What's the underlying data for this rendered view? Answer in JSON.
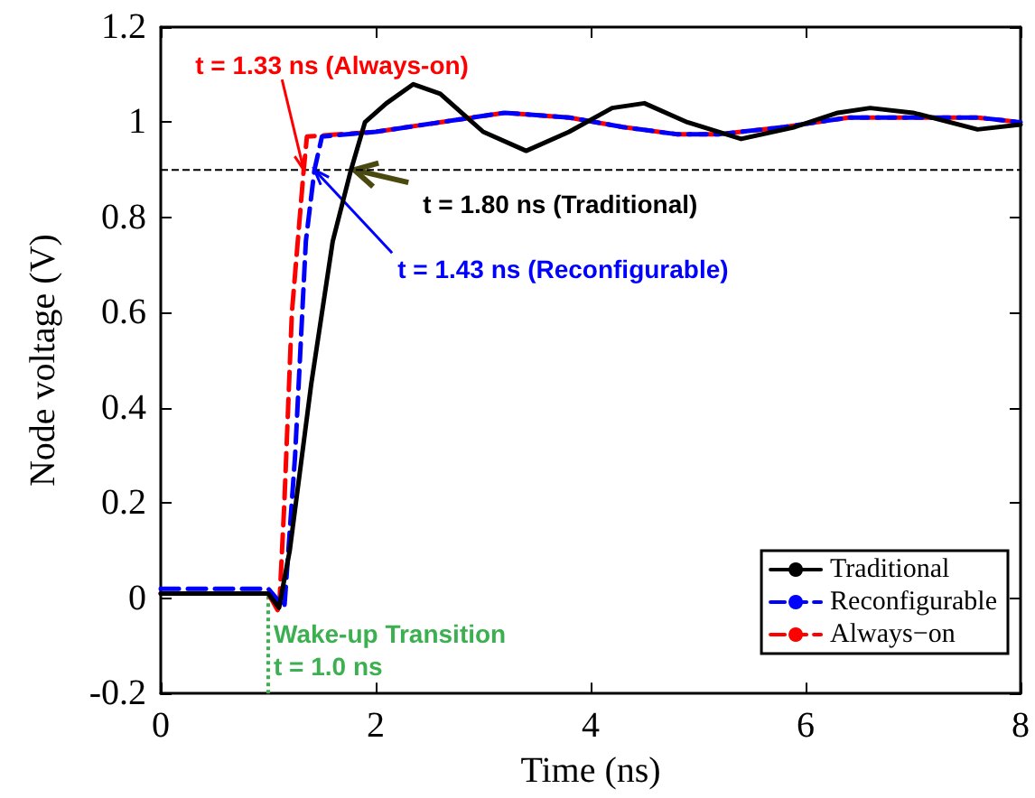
{
  "chart_data": {
    "type": "line",
    "xlabel": "Time (ns)",
    "ylabel": "Node voltage (V)",
    "xlim": [
      0,
      8
    ],
    "xticks": [
      0,
      2,
      4,
      6,
      8
    ],
    "ylim": [
      -0.2,
      1.2
    ],
    "yticks": [
      -0.2,
      0,
      0.2,
      0.4,
      0.6,
      0.8,
      1,
      1.2
    ],
    "grid": false,
    "legend": "bottom right",
    "marker": "none",
    "series": [
      {
        "name": "Traditional",
        "color": "#000000",
        "line_style": "solid",
        "x": [
          0,
          1.0,
          1.1,
          1.2,
          1.4,
          1.6,
          1.77,
          1.9,
          2.1,
          2.35,
          2.6,
          3.0,
          3.4,
          3.8,
          4.2,
          4.5,
          4.9,
          5.4,
          5.9,
          6.3,
          6.6,
          7.0,
          7.6,
          8.0
        ],
        "values": [
          0.01,
          0.01,
          -0.02,
          0.1,
          0.45,
          0.75,
          0.9,
          1.0,
          1.04,
          1.08,
          1.06,
          0.98,
          0.94,
          0.98,
          1.03,
          1.04,
          1.0,
          0.965,
          0.99,
          1.02,
          1.03,
          1.02,
          0.985,
          0.995
        ]
      },
      {
        "name": "Reconfigurable",
        "color": "#0000ff",
        "line_style": "dashed",
        "x": [
          0,
          1.0,
          1.15,
          1.25,
          1.35,
          1.43,
          1.5,
          2.0,
          2.6,
          3.2,
          3.8,
          4.3,
          4.8,
          5.2,
          5.8,
          6.4,
          6.7,
          7.2,
          7.6,
          8.0
        ],
        "values": [
          0.02,
          0.02,
          -0.02,
          0.3,
          0.75,
          0.9,
          0.97,
          0.98,
          1.0,
          1.02,
          1.01,
          0.99,
          0.975,
          0.975,
          0.99,
          1.01,
          1.01,
          1.01,
          1.01,
          1.0
        ]
      },
      {
        "name": "Always−on",
        "color": "#ff0000",
        "line_style": "dashed",
        "x": [
          0,
          1.0,
          1.1,
          1.15,
          1.22,
          1.33,
          1.36,
          2.0,
          2.6,
          3.2,
          3.8,
          4.3,
          4.8,
          5.2,
          5.8,
          6.4,
          6.7,
          7.2,
          7.6,
          8.0
        ],
        "values": [
          0.01,
          0.01,
          -0.03,
          0.2,
          0.6,
          0.9,
          0.97,
          0.98,
          1.0,
          1.02,
          1.01,
          0.99,
          0.975,
          0.975,
          0.99,
          1.01,
          1.01,
          1.01,
          1.01,
          1.0
        ]
      }
    ],
    "ref_lines": [
      {
        "axis": "y",
        "value": 0.9,
        "color": "#000000",
        "line_style": "dashed"
      },
      {
        "axis": "x",
        "value": 1.0,
        "color": "#3cb050",
        "line_style": "dotted"
      }
    ],
    "annotations": [
      {
        "text": "t = 1.33 ns (Always-on)",
        "x": 1.33,
        "y": 0.9
      },
      {
        "text": "t = 1.80 ns (Traditional)",
        "x": 1.8,
        "y": 0.9
      },
      {
        "text": "t = 1.43 ns (Reconfigurable)",
        "x": 1.43,
        "y": 0.9
      },
      "Wake-up Transition\nt = 1.0 ns"
    ]
  }
}
